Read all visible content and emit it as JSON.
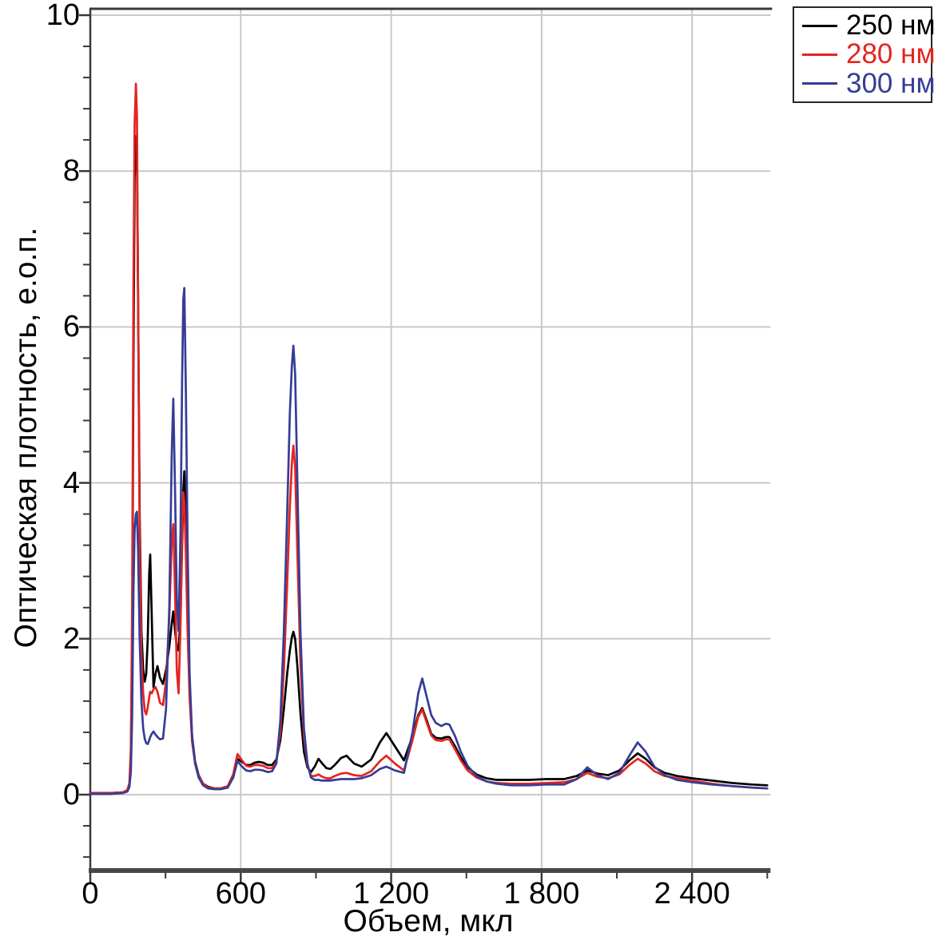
{
  "chart_data": {
    "type": "line",
    "title": "",
    "xlabel": "Объем, мкл",
    "ylabel": "Оптическая плотность, е.о.п.",
    "xlim": [
      0,
      2700
    ],
    "ylim": [
      -0.97,
      10.08
    ],
    "grid": true,
    "legend_position": "top-right",
    "x_tick_values": [
      0,
      600,
      1200,
      1800,
      2400
    ],
    "x_tick_labels": [
      "0",
      "600",
      "1 200",
      "1 800",
      "2 400"
    ],
    "x_minor_ticks": [
      300,
      900,
      1500,
      2100,
      2700
    ],
    "y_tick_values": [
      0,
      2,
      4,
      6,
      8,
      10
    ],
    "y_tick_labels": [
      "0",
      "2",
      "4",
      "6",
      "8",
      "10"
    ],
    "y_minor_step": 0.4,
    "colors": {
      "grid": "#c9c9c9",
      "axis": "#3a3a3a",
      "frame": "#3a3a3a"
    },
    "x": [
      0,
      80,
      130,
      148,
      156,
      162,
      167,
      172,
      177,
      182,
      186,
      191,
      197,
      204,
      211,
      217,
      223,
      229,
      235,
      239,
      245,
      252,
      260,
      268,
      278,
      290,
      302,
      315,
      325,
      331,
      338,
      345,
      352,
      360,
      366,
      371,
      375,
      381,
      388,
      396,
      406,
      418,
      432,
      450,
      470,
      495,
      520,
      548,
      570,
      587,
      605,
      622,
      638,
      655,
      672,
      690,
      708,
      725,
      742,
      758,
      772,
      785,
      796,
      804,
      810,
      817,
      826,
      838,
      852,
      866,
      880,
      895,
      910,
      925,
      942,
      958,
      975,
      1000,
      1022,
      1052,
      1082,
      1120,
      1155,
      1181,
      1215,
      1251,
      1285,
      1308,
      1324,
      1342,
      1360,
      1378,
      1400,
      1418,
      1432,
      1455,
      1478,
      1505,
      1540,
      1580,
      1620,
      1680,
      1750,
      1820,
      1890,
      1940,
      1982,
      2022,
      2065,
      2110,
      2150,
      2183,
      2215,
      2250,
      2290,
      2340,
      2400,
      2480,
      2560,
      2640,
      2700
    ],
    "series": [
      {
        "name": "250 нм",
        "color": "#000000",
        "values": [
          0.02,
          0.02,
          0.03,
          0.05,
          0.12,
          0.45,
          1.8,
          5.5,
          7.9,
          8.45,
          8.2,
          6.3,
          3.6,
          2.1,
          1.6,
          1.45,
          1.55,
          2.0,
          2.85,
          3.08,
          2.3,
          1.38,
          1.55,
          1.65,
          1.5,
          1.42,
          1.6,
          1.9,
          2.2,
          2.35,
          2.1,
          1.9,
          1.85,
          2.3,
          3.2,
          3.9,
          4.15,
          3.6,
          2.4,
          1.4,
          0.75,
          0.42,
          0.25,
          0.14,
          0.1,
          0.08,
          0.08,
          0.1,
          0.22,
          0.46,
          0.42,
          0.38,
          0.38,
          0.41,
          0.42,
          0.41,
          0.38,
          0.38,
          0.45,
          0.7,
          1.1,
          1.55,
          1.85,
          2.02,
          2.09,
          2.0,
          1.65,
          1.05,
          0.55,
          0.35,
          0.29,
          0.36,
          0.46,
          0.4,
          0.34,
          0.33,
          0.38,
          0.47,
          0.5,
          0.4,
          0.36,
          0.45,
          0.67,
          0.79,
          0.62,
          0.44,
          0.75,
          1.02,
          1.11,
          0.95,
          0.78,
          0.73,
          0.72,
          0.74,
          0.74,
          0.62,
          0.48,
          0.35,
          0.26,
          0.21,
          0.19,
          0.19,
          0.19,
          0.2,
          0.2,
          0.24,
          0.31,
          0.27,
          0.25,
          0.31,
          0.44,
          0.53,
          0.46,
          0.35,
          0.28,
          0.24,
          0.21,
          0.18,
          0.15,
          0.13,
          0.12
        ]
      },
      {
        "name": "280 нм",
        "color": "#e52420",
        "values": [
          0.02,
          0.02,
          0.03,
          0.06,
          0.15,
          0.6,
          2.4,
          6.5,
          8.6,
          9.12,
          8.7,
          6.2,
          3.3,
          1.8,
          1.3,
          1.08,
          1.03,
          1.12,
          1.25,
          1.32,
          1.3,
          1.35,
          1.38,
          1.32,
          1.18,
          1.15,
          1.45,
          2.3,
          3.25,
          3.47,
          2.6,
          1.6,
          1.3,
          2.2,
          3.4,
          3.88,
          3.75,
          3.1,
          2.1,
          1.25,
          0.68,
          0.4,
          0.24,
          0.14,
          0.09,
          0.08,
          0.08,
          0.11,
          0.26,
          0.52,
          0.44,
          0.37,
          0.36,
          0.38,
          0.38,
          0.37,
          0.34,
          0.34,
          0.42,
          0.8,
          1.6,
          2.7,
          3.7,
          4.25,
          4.48,
          4.2,
          3.1,
          1.7,
          0.75,
          0.38,
          0.24,
          0.24,
          0.26,
          0.23,
          0.21,
          0.21,
          0.24,
          0.27,
          0.28,
          0.25,
          0.24,
          0.3,
          0.43,
          0.5,
          0.4,
          0.31,
          0.7,
          1.0,
          1.09,
          0.92,
          0.76,
          0.7,
          0.69,
          0.71,
          0.71,
          0.58,
          0.44,
          0.31,
          0.22,
          0.17,
          0.15,
          0.14,
          0.14,
          0.15,
          0.16,
          0.2,
          0.28,
          0.23,
          0.21,
          0.26,
          0.38,
          0.46,
          0.4,
          0.3,
          0.24,
          0.21,
          0.18,
          0.14,
          0.11,
          0.09,
          0.08
        ]
      },
      {
        "name": "300 нм",
        "color": "#363d96",
        "values": [
          0.01,
          0.01,
          0.02,
          0.04,
          0.1,
          0.3,
          1.0,
          2.6,
          3.4,
          3.6,
          3.63,
          3.1,
          2.0,
          1.2,
          0.85,
          0.72,
          0.66,
          0.65,
          0.7,
          0.74,
          0.78,
          0.81,
          0.77,
          0.74,
          0.71,
          0.72,
          1.1,
          2.4,
          4.4,
          5.08,
          3.9,
          2.5,
          2.1,
          3.4,
          5.3,
          6.35,
          6.5,
          5.2,
          3.2,
          1.55,
          0.75,
          0.4,
          0.22,
          0.12,
          0.08,
          0.07,
          0.07,
          0.09,
          0.22,
          0.43,
          0.36,
          0.31,
          0.3,
          0.32,
          0.32,
          0.31,
          0.29,
          0.3,
          0.4,
          0.95,
          2.1,
          3.6,
          4.9,
          5.5,
          5.76,
          5.4,
          4.0,
          2.1,
          0.85,
          0.4,
          0.22,
          0.19,
          0.19,
          0.18,
          0.18,
          0.18,
          0.19,
          0.2,
          0.2,
          0.2,
          0.21,
          0.25,
          0.33,
          0.36,
          0.31,
          0.28,
          0.8,
          1.3,
          1.49,
          1.25,
          1.02,
          0.92,
          0.88,
          0.91,
          0.9,
          0.75,
          0.55,
          0.37,
          0.24,
          0.17,
          0.14,
          0.12,
          0.12,
          0.13,
          0.13,
          0.2,
          0.35,
          0.25,
          0.2,
          0.28,
          0.5,
          0.67,
          0.55,
          0.36,
          0.25,
          0.19,
          0.16,
          0.13,
          0.11,
          0.09,
          0.08
        ]
      }
    ]
  }
}
